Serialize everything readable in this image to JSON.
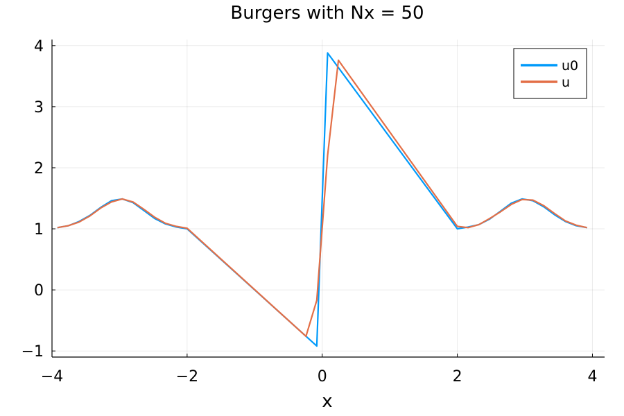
{
  "chart_data": {
    "type": "line",
    "title": "Burgers with Nx = 50",
    "xlabel": "x",
    "ylabel": "",
    "xlim": [
      -4.0,
      4.18
    ],
    "ylim": [
      -1.1,
      4.1
    ],
    "xticks": [
      -4,
      -2,
      0,
      2,
      4
    ],
    "xtick_labels": [
      "−4",
      "−2",
      "0",
      "2",
      "4"
    ],
    "yticks": [
      -1,
      0,
      1,
      2,
      3,
      4
    ],
    "ytick_labels": [
      "−1",
      "0",
      "1",
      "2",
      "3",
      "4"
    ],
    "grid": true,
    "legend_position": "top-right",
    "series": [
      {
        "name": "u0",
        "color": "#009AFA",
        "x": [
          -3.92,
          -3.76,
          -3.6,
          -3.44,
          -3.28,
          -3.12,
          -2.96,
          -2.8,
          -2.64,
          -2.48,
          -2.32,
          -2.16,
          -2.0,
          -0.08,
          0.08,
          2.0,
          2.16,
          2.32,
          2.48,
          2.64,
          2.8,
          2.96,
          3.12,
          3.28,
          3.44,
          3.6,
          3.76,
          3.92
        ],
        "y": [
          1.02,
          1.05,
          1.12,
          1.22,
          1.35,
          1.46,
          1.49,
          1.43,
          1.3,
          1.17,
          1.08,
          1.03,
          1.0,
          -0.92,
          3.88,
          1.0,
          1.03,
          1.07,
          1.16,
          1.29,
          1.42,
          1.49,
          1.46,
          1.36,
          1.23,
          1.12,
          1.05,
          1.02
        ]
      },
      {
        "name": "u",
        "color": "#E36F47",
        "x": [
          -3.92,
          -3.76,
          -3.6,
          -3.44,
          -3.28,
          -3.12,
          -2.96,
          -2.8,
          -2.64,
          -2.48,
          -2.32,
          -2.16,
          -2.0,
          -0.24,
          -0.08,
          0.08,
          0.24,
          2.0,
          2.16,
          2.32,
          2.48,
          2.64,
          2.8,
          2.96,
          3.12,
          3.28,
          3.44,
          3.6,
          3.76,
          3.92
        ],
        "y": [
          1.02,
          1.05,
          1.11,
          1.21,
          1.34,
          1.44,
          1.49,
          1.44,
          1.32,
          1.19,
          1.09,
          1.04,
          1.01,
          -0.76,
          -0.17,
          2.2,
          3.76,
          1.04,
          1.02,
          1.07,
          1.17,
          1.28,
          1.4,
          1.48,
          1.47,
          1.38,
          1.25,
          1.13,
          1.06,
          1.02
        ]
      }
    ]
  }
}
